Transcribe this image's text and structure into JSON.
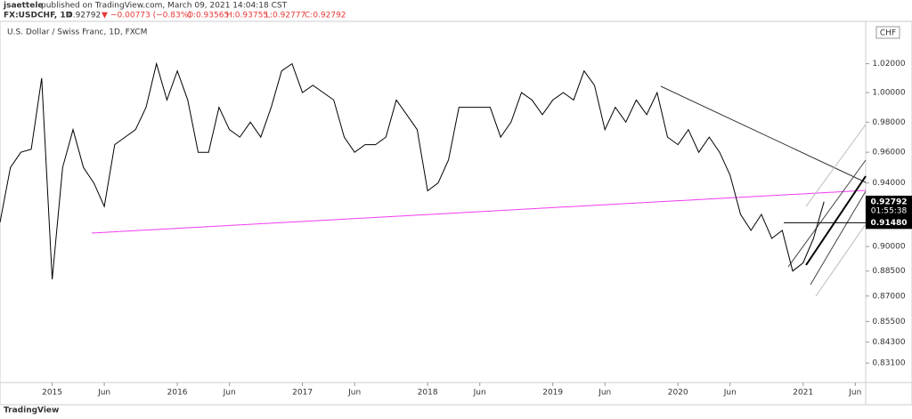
{
  "header": {
    "author": "jsaettele",
    "published": "published on TradingView.com, March 09, 2021 14:04:18 CST",
    "symbol": "FX:USDCHF, 1D",
    "last": "0.92792",
    "arrow": "▼",
    "change": "−0.00773 (−0.83%)",
    "open": "O:0.93565",
    "high": "H:0.93755",
    "low": "L:0.92777",
    "close": "C:0.92792",
    "footer": "TradingView"
  },
  "chart_data": {
    "type": "line",
    "title": "U.S. Dollar / Swiss Franc, 1D, FXCM",
    "currency": "CHF",
    "color": "#000000",
    "log_scale": true,
    "grid": false,
    "x": [
      "2014-08",
      "2014-09",
      "2014-10",
      "2014-11",
      "2014-12",
      "2015-01",
      "2015-02",
      "2015-03",
      "2015-04",
      "2015-05",
      "2015-06",
      "2015-07",
      "2015-08",
      "2015-09",
      "2015-10",
      "2015-11",
      "2015-12",
      "2016-01",
      "2016-02",
      "2016-03",
      "2016-04",
      "2016-05",
      "2016-06",
      "2016-07",
      "2016-08",
      "2016-09",
      "2016-10",
      "2016-11",
      "2016-12",
      "2017-01",
      "2017-02",
      "2017-03",
      "2017-04",
      "2017-05",
      "2017-06",
      "2017-07",
      "2017-08",
      "2017-09",
      "2017-10",
      "2017-11",
      "2017-12",
      "2018-01",
      "2018-02",
      "2018-03",
      "2018-04",
      "2018-05",
      "2018-06",
      "2018-07",
      "2018-08",
      "2018-09",
      "2018-10",
      "2018-11",
      "2018-12",
      "2019-01",
      "2019-02",
      "2019-03",
      "2019-04",
      "2019-05",
      "2019-06",
      "2019-07",
      "2019-08",
      "2019-09",
      "2019-10",
      "2019-11",
      "2019-12",
      "2020-01",
      "2020-02",
      "2020-03",
      "2020-04",
      "2020-05",
      "2020-06",
      "2020-07",
      "2020-08",
      "2020-09",
      "2020-10",
      "2020-11",
      "2020-12",
      "2021-01",
      "2021-02",
      "2021-03"
    ],
    "values": [
      0.915,
      0.95,
      0.96,
      0.962,
      1.01,
      0.88,
      0.95,
      0.975,
      0.95,
      0.94,
      0.925,
      0.965,
      0.97,
      0.975,
      0.99,
      1.02,
      0.995,
      1.015,
      0.995,
      0.96,
      0.96,
      0.99,
      0.975,
      0.97,
      0.98,
      0.97,
      0.99,
      1.015,
      1.02,
      1.0,
      1.005,
      1.0,
      0.995,
      0.97,
      0.96,
      0.965,
      0.965,
      0.97,
      0.995,
      0.985,
      0.975,
      0.935,
      0.94,
      0.955,
      0.99,
      0.99,
      0.99,
      0.99,
      0.97,
      0.98,
      1.0,
      0.995,
      0.985,
      0.995,
      1.0,
      0.995,
      1.015,
      1.005,
      0.975,
      0.99,
      0.98,
      0.995,
      0.985,
      1.0,
      0.97,
      0.965,
      0.975,
      0.96,
      0.97,
      0.96,
      0.945,
      0.92,
      0.91,
      0.92,
      0.905,
      0.91,
      0.885,
      0.89,
      0.905,
      0.928
    ],
    "xlim": [
      "2014-08",
      "2021-07"
    ],
    "xticks": [
      {
        "value": "2015-01",
        "label": "2015"
      },
      {
        "value": "2015-06",
        "label": "Jun"
      },
      {
        "value": "2016-01",
        "label": "2016"
      },
      {
        "value": "2016-06",
        "label": "Jun"
      },
      {
        "value": "2017-01",
        "label": "2017"
      },
      {
        "value": "2017-06",
        "label": "Jun"
      },
      {
        "value": "2018-01",
        "label": "2018"
      },
      {
        "value": "2018-06",
        "label": "Jun"
      },
      {
        "value": "2019-01",
        "label": "2019"
      },
      {
        "value": "2019-06",
        "label": "Jun"
      },
      {
        "value": "2020-01",
        "label": "2020"
      },
      {
        "value": "2020-06",
        "label": "Jun"
      },
      {
        "value": "2021-01",
        "label": "2021"
      },
      {
        "value": "2021-06",
        "label": "Jun"
      }
    ],
    "ylim": [
      0.82,
      1.05
    ],
    "yticks": [
      {
        "value": 1.02,
        "label": "1.02000"
      },
      {
        "value": 1.0,
        "label": "1.00000"
      },
      {
        "value": 0.98,
        "label": "0.98000"
      },
      {
        "value": 0.96,
        "label": "0.96000"
      },
      {
        "value": 0.94,
        "label": "0.94000"
      },
      {
        "value": 0.9,
        "label": "0.90000"
      },
      {
        "value": 0.885,
        "label": "0.88500"
      },
      {
        "value": 0.87,
        "label": "0.87000"
      },
      {
        "value": 0.855,
        "label": "0.85500"
      },
      {
        "value": 0.843,
        "label": "0.84300"
      },
      {
        "value": 0.831,
        "label": "0.83100"
      }
    ],
    "last_price": {
      "value": 0.92792,
      "label": "0.92792",
      "countdown": "01:55:38"
    },
    "level": {
      "value": 0.9148,
      "label": "0.91480"
    }
  }
}
